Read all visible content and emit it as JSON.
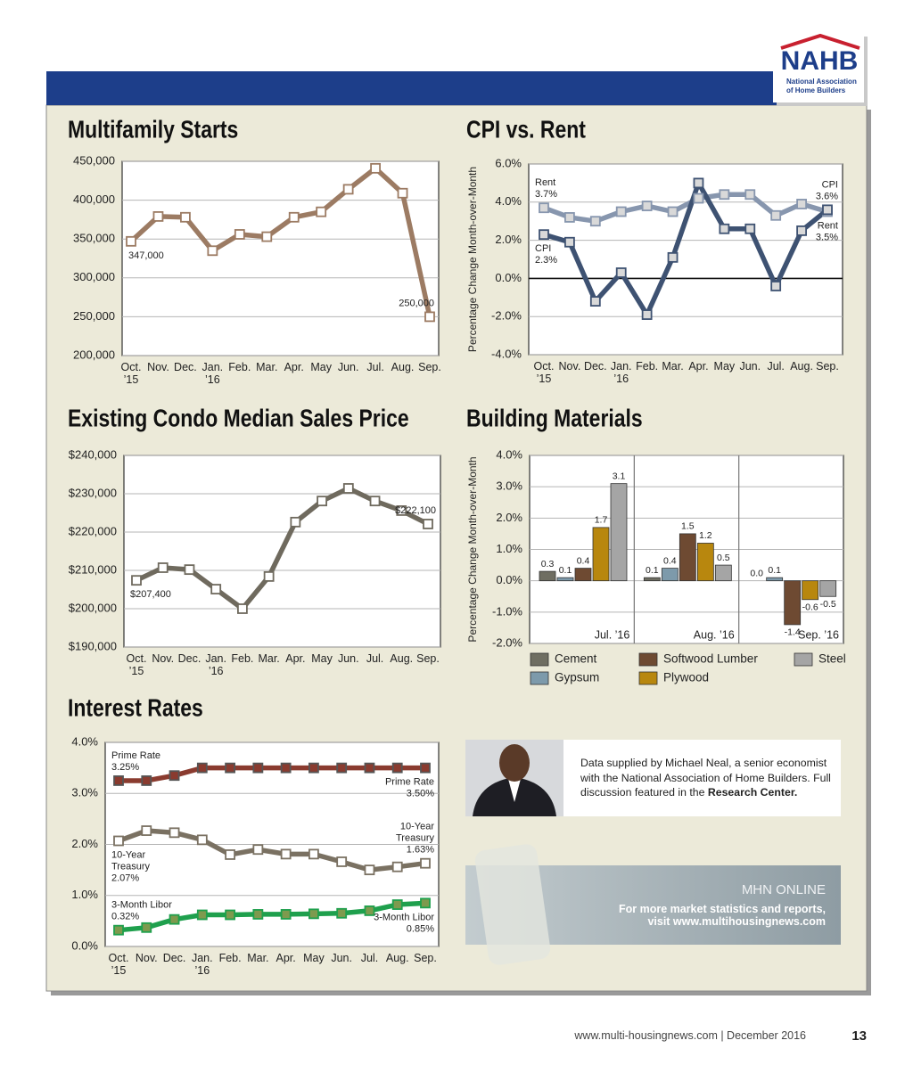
{
  "header": {
    "logo": {
      "acronym": "NAHB",
      "line1": "National Association",
      "line2": "of Home Builders"
    }
  },
  "chart_data": [
    {
      "type": "line",
      "title": "Multifamily Starts",
      "categories": [
        "Oct. ’15",
        "Nov.",
        "Dec.",
        "Jan. ’16",
        "Feb.",
        "Mar.",
        "Apr.",
        "May",
        "Jun.",
        "Jul.",
        "Aug.",
        "Sep."
      ],
      "values": [
        347000,
        379000,
        378000,
        335000,
        356000,
        353000,
        378000,
        385000,
        414000,
        441000,
        409000,
        250000
      ],
      "value_labels": [
        "347,000",
        null,
        null,
        null,
        null,
        null,
        null,
        null,
        null,
        null,
        null,
        "250,000"
      ],
      "color": "#9c7b63",
      "marker_color": "#ffffff",
      "ylim": [
        200000,
        450000
      ],
      "yticks": [
        {
          "value": 200000,
          "label": "200,000"
        },
        {
          "value": 250000,
          "label": "250,000"
        },
        {
          "value": 300000,
          "label": "300,000"
        },
        {
          "value": 350000,
          "label": "350,000"
        },
        {
          "value": 400000,
          "label": "400,000"
        },
        {
          "value": 450000,
          "label": "450,000"
        }
      ],
      "grid": true
    },
    {
      "type": "line",
      "title": "CPI vs. Rent",
      "y_label": "Percentage Change Month-over-Month",
      "categories": [
        "Oct. ’15",
        "Nov.",
        "Dec.",
        "Jan. ’16",
        "Feb.",
        "Mar.",
        "Apr.",
        "May",
        "Jun.",
        "Jul.",
        "Aug.",
        "Sep."
      ],
      "series": [
        {
          "name": "Rent",
          "color": "#8796ae",
          "marker_color": "#d9d9d9",
          "values": [
            3.7,
            3.2,
            3.0,
            3.5,
            3.8,
            3.5,
            4.2,
            4.4,
            4.4,
            3.3,
            3.9,
            3.5
          ],
          "value_labels": [
            "3.7%",
            null,
            null,
            null,
            null,
            null,
            null,
            null,
            null,
            null,
            null,
            "3.5%"
          ]
        },
        {
          "name": "CPI",
          "color": "#3e5272",
          "marker_color": "#d9d9d9",
          "values": [
            2.3,
            1.9,
            -1.2,
            0.3,
            -1.9,
            1.1,
            5.0,
            2.6,
            2.6,
            -0.4,
            2.5,
            3.6
          ],
          "value_labels": [
            "2.3%",
            null,
            null,
            null,
            null,
            null,
            null,
            null,
            null,
            null,
            null,
            "3.6%"
          ]
        }
      ],
      "ylim": [
        -4,
        6
      ],
      "yticks": [
        {
          "value": -4,
          "label": "-4.0%"
        },
        {
          "value": -2,
          "label": "-2.0%"
        },
        {
          "value": 0,
          "label": "0.0%"
        },
        {
          "value": 2,
          "label": "2.0%"
        },
        {
          "value": 4,
          "label": "4.0%"
        },
        {
          "value": 6,
          "label": "6.0%"
        }
      ],
      "grid": true,
      "zero_line": true
    },
    {
      "type": "line",
      "title": "Existing Condo Median Sales Price",
      "categories": [
        "Oct. ’15",
        "Nov.",
        "Dec.",
        "Jan. ’16",
        "Feb.",
        "Mar.",
        "Apr.",
        "May",
        "Jun.",
        "Jul.",
        "Aug.",
        "Sep."
      ],
      "values": [
        207400,
        210700,
        210200,
        205100,
        200000,
        208400,
        222600,
        228100,
        231400,
        228100,
        225600,
        222100
      ],
      "value_labels": [
        "$207,400",
        null,
        null,
        null,
        null,
        null,
        null,
        null,
        null,
        null,
        null,
        "$222,100"
      ],
      "color": "#6f6a5e",
      "marker_color": "#ffffff",
      "ylim": [
        190000,
        240000
      ],
      "yticks": [
        {
          "value": 190000,
          "label": "$190,000"
        },
        {
          "value": 200000,
          "label": "$200,000"
        },
        {
          "value": 210000,
          "label": "$210,000"
        },
        {
          "value": 220000,
          "label": "$220,000"
        },
        {
          "value": 230000,
          "label": "$230,000"
        },
        {
          "value": 240000,
          "label": "$240,000"
        }
      ],
      "grid": true
    },
    {
      "type": "bar",
      "title": "Building Materials",
      "y_label": "Percentage Change Month-over-Month",
      "categories": [
        "Jul. ’16",
        "Aug. ’16",
        "Sep. ’16"
      ],
      "series": [
        {
          "name": "Cement",
          "color": "#6f6e62",
          "values": [
            0.3,
            0.1,
            0.0
          ],
          "value_labels": [
            "0.3",
            "0.1",
            "0.0"
          ]
        },
        {
          "name": "Gypsum",
          "color": "#7d9aab",
          "values": [
            0.1,
            0.4,
            0.1
          ],
          "value_labels": [
            "0.1",
            "0.4",
            "0.1"
          ]
        },
        {
          "name": "Softwood Lumber",
          "color": "#6e4a32",
          "values": [
            0.4,
            1.5,
            -1.4
          ],
          "value_labels": [
            "0.4",
            "1.5",
            "-1.4"
          ]
        },
        {
          "name": "Plywood",
          "color": "#b8870e",
          "values": [
            1.7,
            1.2,
            -0.6
          ],
          "value_labels": [
            "1.7",
            "1.2",
            "-0.6"
          ]
        },
        {
          "name": "Steel",
          "color": "#a5a5a5",
          "values": [
            3.1,
            0.5,
            -0.5
          ],
          "value_labels": [
            "3.1",
            "0.5",
            "-0.5"
          ]
        }
      ],
      "ylim": [
        -2,
        4
      ],
      "yticks": [
        {
          "value": -2,
          "label": "-2.0%"
        },
        {
          "value": -1,
          "label": "-1.0%"
        },
        {
          "value": 0,
          "label": "0.0%"
        },
        {
          "value": 1,
          "label": "1.0%"
        },
        {
          "value": 2,
          "label": "2.0%"
        },
        {
          "value": 3,
          "label": "3.0%"
        },
        {
          "value": 4,
          "label": "4.0%"
        }
      ],
      "grid": true,
      "legend": "bottom"
    },
    {
      "type": "line",
      "title": "Interest Rates",
      "categories": [
        "Oct. ’15",
        "Nov.",
        "Dec.",
        "Jan. ’16",
        "Feb.",
        "Mar.",
        "Apr.",
        "May",
        "Jun.",
        "Jul.",
        "Aug.",
        "Sep."
      ],
      "series": [
        {
          "name": "Prime Rate",
          "color": "#8a3b2f",
          "marker_color": "#8a3b2f",
          "values": [
            3.25,
            3.25,
            3.35,
            3.5,
            3.5,
            3.5,
            3.5,
            3.5,
            3.5,
            3.5,
            3.5,
            3.5
          ],
          "value_labels": [
            "3.25%",
            null,
            null,
            null,
            null,
            null,
            null,
            null,
            null,
            null,
            null,
            "3.50%"
          ]
        },
        {
          "name": "10-Year Treasury",
          "color": "#7a7162",
          "marker_color": "#ffffff",
          "values": [
            2.07,
            2.27,
            2.23,
            2.09,
            1.8,
            1.9,
            1.81,
            1.81,
            1.66,
            1.5,
            1.56,
            1.63
          ],
          "value_labels": [
            "2.07%",
            null,
            null,
            null,
            null,
            null,
            null,
            null,
            null,
            null,
            null,
            "1.63%"
          ]
        },
        {
          "name": "3-Month Libor",
          "color": "#1fa04d",
          "marker_color": "#7e9a4e",
          "values": [
            0.32,
            0.37,
            0.53,
            0.62,
            0.62,
            0.63,
            0.63,
            0.64,
            0.65,
            0.7,
            0.82,
            0.85
          ],
          "value_labels": [
            "0.32%",
            null,
            null,
            null,
            null,
            null,
            null,
            null,
            null,
            null,
            null,
            "0.85%"
          ]
        }
      ],
      "ylim": [
        0,
        4
      ],
      "yticks": [
        {
          "value": 0,
          "label": "0.0%"
        },
        {
          "value": 1,
          "label": "1.0%"
        },
        {
          "value": 2,
          "label": "2.0%"
        },
        {
          "value": 3,
          "label": "3.0%"
        },
        {
          "value": 4,
          "label": "4.0%"
        }
      ],
      "grid": true
    }
  ],
  "info_box": {
    "text": "Data supplied by Michael Neal, a senior economist with the National Association of Home Builders. Full discussion featured in the",
    "emphasis": "Research Center."
  },
  "promo": {
    "title": "MHN ONLINE",
    "line1": "For more market statistics and reports,",
    "line2": "visit www.multihousingnews.com"
  },
  "footer": {
    "text": "www.multi-housingnews.com | December 2016",
    "page": 13
  }
}
